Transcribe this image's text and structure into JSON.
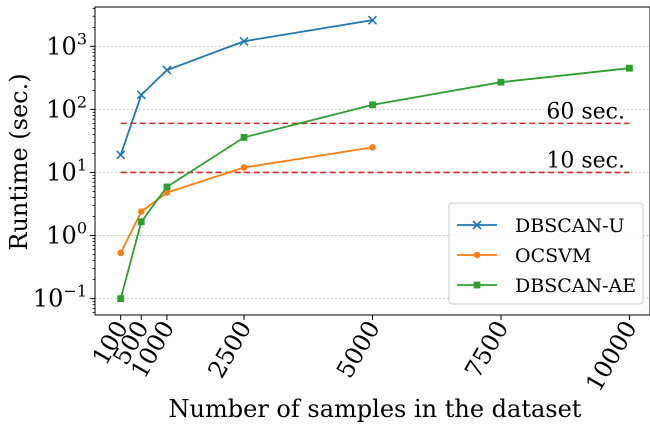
{
  "chart_data": {
    "type": "line",
    "xlabel": "Number of samples in the dataset",
    "ylabel": "Runtime (sec.)",
    "xlim": [
      -400,
      10400
    ],
    "ylim": [
      0.055,
      4200
    ],
    "y_scale": "log",
    "grid": "horizontal dotted at decades",
    "legend_position": "lower-right",
    "x_ticks": [
      100,
      500,
      1000,
      2500,
      5000,
      7500,
      10000
    ],
    "x_tick_labels": [
      "100",
      "500",
      "1000",
      "2500",
      "5000",
      "7500",
      "10000"
    ],
    "y_ticks": [
      0.1,
      1,
      10,
      100,
      1000
    ],
    "y_tick_labels": [
      {
        "base": "10",
        "exp": "−1"
      },
      {
        "base": "10",
        "exp": "0"
      },
      {
        "base": "10",
        "exp": "1"
      },
      {
        "base": "10",
        "exp": "2"
      },
      {
        "base": "10",
        "exp": "3"
      }
    ],
    "series": [
      {
        "name": "DBSCAN-U",
        "color": "#1f77b4",
        "marker": "x",
        "x": [
          100,
          500,
          1000,
          2500,
          5000
        ],
        "y": [
          19,
          170,
          420,
          1200,
          2600
        ]
      },
      {
        "name": "OCSVM",
        "color": "#ff7f0e",
        "marker": "circle",
        "x": [
          100,
          500,
          1000,
          2500,
          5000
        ],
        "y": [
          0.53,
          2.4,
          4.8,
          12,
          25
        ]
      },
      {
        "name": "DBSCAN-AE",
        "color": "#2ca02c",
        "marker": "square",
        "x": [
          100,
          500,
          1000,
          2500,
          5000,
          7500,
          10000
        ],
        "y": [
          0.1,
          1.65,
          5.9,
          36,
          118,
          270,
          450
        ]
      }
    ],
    "reference_lines": [
      {
        "label": "60 sec.",
        "y": 60,
        "color": "#d62728"
      },
      {
        "label": "10 sec.",
        "y": 10,
        "color": "#d62728"
      }
    ]
  }
}
